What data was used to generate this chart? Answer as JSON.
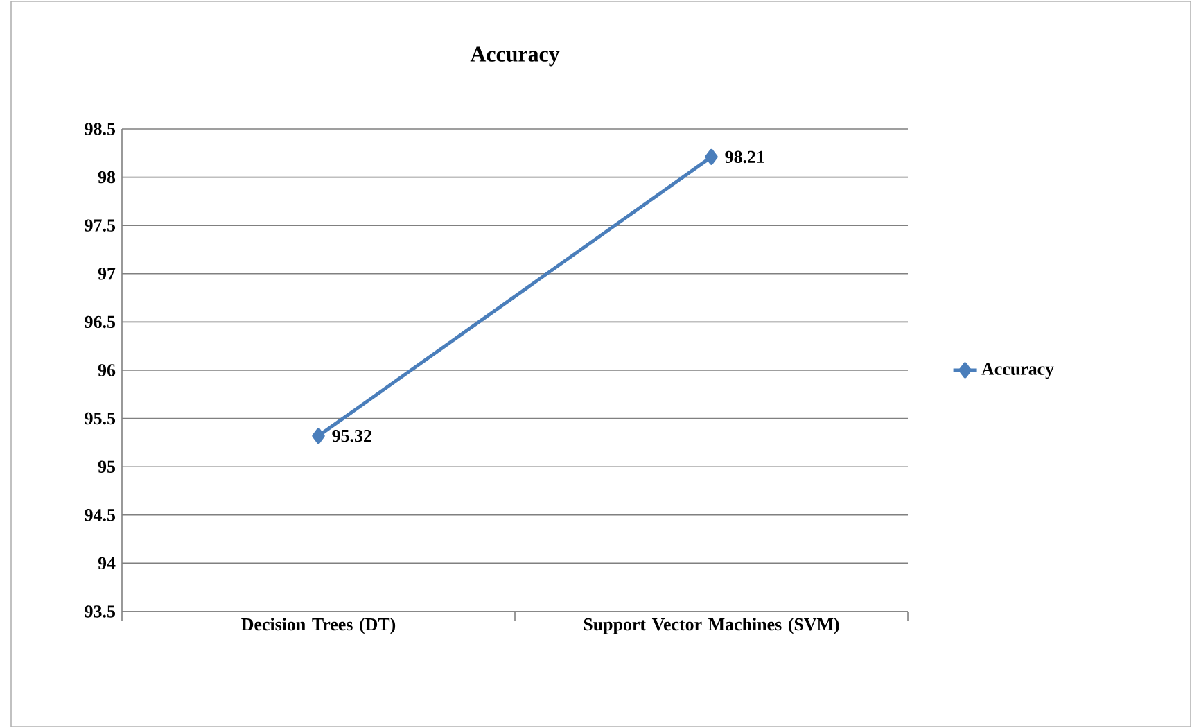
{
  "chart_data": {
    "type": "line",
    "title": "Accuracy",
    "categories": [
      "Decision Trees (DT)",
      "Support Vector Machines (SVM)"
    ],
    "series": [
      {
        "name": "Accuracy",
        "color": "#4a7ebb",
        "values": [
          95.32,
          98.21
        ]
      }
    ],
    "ylim": [
      93.5,
      98.5
    ],
    "yticks": [
      93.5,
      94,
      94.5,
      95,
      95.5,
      96,
      96.5,
      97,
      97.5,
      98,
      98.5
    ],
    "grid": "y",
    "legend": "right",
    "marker": "diamond",
    "data_labels": true
  }
}
